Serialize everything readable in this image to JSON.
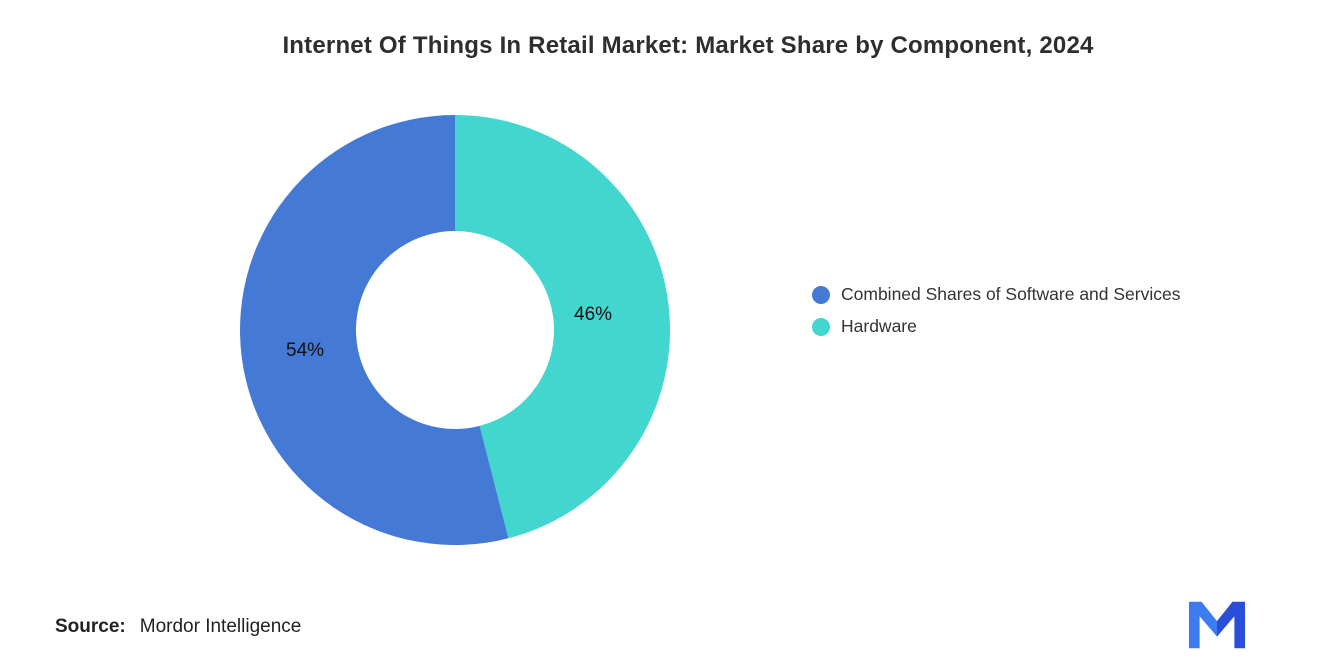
{
  "title": "Internet Of Things In Retail Market: Market Share by Component, 2024",
  "chart_data": {
    "type": "pie",
    "donut": true,
    "title": "Internet Of Things In Retail Market: Market Share by Component, 2024",
    "legend_position": "right",
    "start_angle_deg": -90,
    "series": [
      {
        "name": "Combined Shares of Software and Services",
        "value": 54,
        "label": "54%",
        "color": "#4579D6"
      },
      {
        "name": "Hardware",
        "value": 46,
        "label": "46%",
        "color": "#43D6CF"
      }
    ]
  },
  "source": {
    "prefix": "Source:",
    "text": "Mordor Intelligence"
  },
  "logo": {
    "name": "mordor-intelligence-logo",
    "colors": [
      "#3B7CF0",
      "#2B4ED8"
    ]
  }
}
